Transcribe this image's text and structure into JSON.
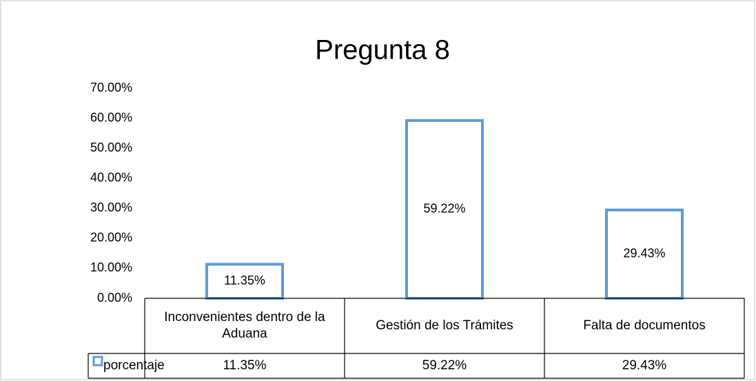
{
  "chart_data": {
    "type": "bar",
    "title": "Pregunta 8",
    "categories": [
      "Inconvenientes dentro de la Aduana",
      "Gestión de los Trámites",
      "Falta de documentos"
    ],
    "series": [
      {
        "name": "porcentaje",
        "color": "#5b9bd5",
        "values": [
          11.35,
          59.22,
          29.43
        ],
        "value_labels": [
          "11.35%",
          "59.22%",
          "29.43%"
        ]
      }
    ],
    "ylim": [
      0,
      70
    ],
    "yticks": [
      {
        "value": 0,
        "label": "0.00%"
      },
      {
        "value": 10,
        "label": "10.00%"
      },
      {
        "value": 20,
        "label": "20.00%"
      },
      {
        "value": 30,
        "label": "30.00%"
      },
      {
        "value": 40,
        "label": "40.00%"
      },
      {
        "value": 50,
        "label": "50.00%"
      },
      {
        "value": 60,
        "label": "60.00%"
      },
      {
        "value": 70,
        "label": "70.00%"
      }
    ],
    "data_table": true
  }
}
